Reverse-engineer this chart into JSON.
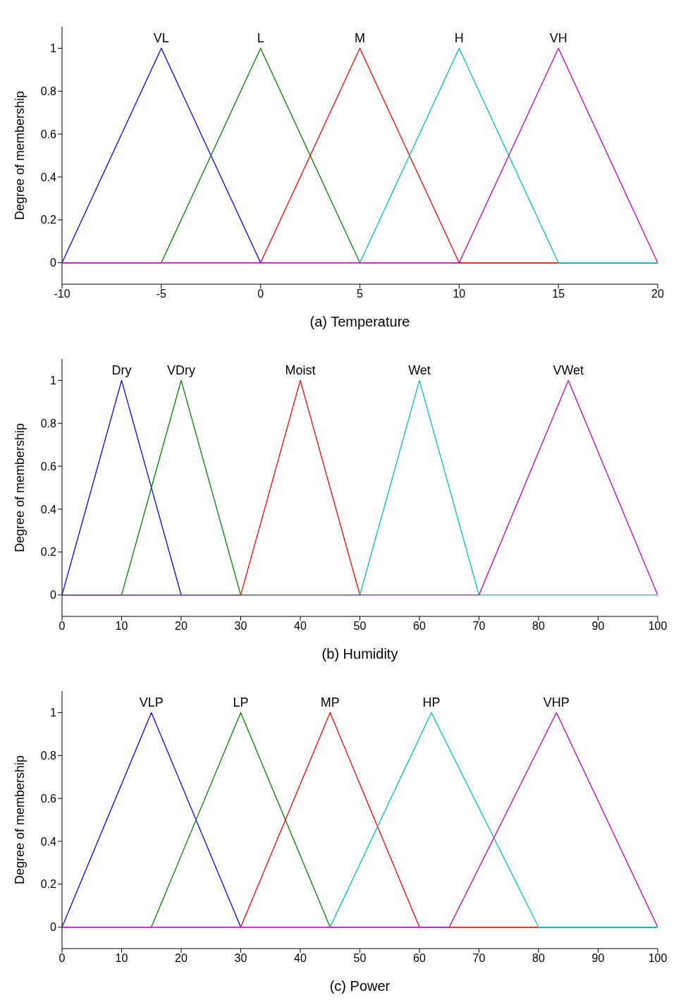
{
  "chart_data": [
    {
      "type": "line",
      "xlabel": "(a) Temperature",
      "ylabel": "Degree of membership",
      "xlim": [
        -10,
        20
      ],
      "xticks": [
        -10,
        -5,
        0,
        5,
        10,
        15,
        20
      ],
      "ylim": [
        -0.1,
        1.1
      ],
      "yticks": [
        0,
        0.2,
        0.4,
        0.6,
        0.8,
        1
      ],
      "grid": false,
      "legend": false,
      "marker": "none",
      "line_style": "solid",
      "series": [
        {
          "name": "VL",
          "color": "#0000ff",
          "x": [
            -10,
            -5,
            0,
            20
          ],
          "values": [
            0,
            1,
            0,
            0
          ]
        },
        {
          "name": "L",
          "color": "#008000",
          "x": [
            -10,
            -5,
            0,
            5,
            20
          ],
          "values": [
            0,
            0,
            1,
            0,
            0
          ]
        },
        {
          "name": "M",
          "color": "#ff0000",
          "x": [
            -10,
            0,
            5,
            10,
            20
          ],
          "values": [
            0,
            0,
            1,
            0,
            0
          ]
        },
        {
          "name": "H",
          "color": "#00bfbf",
          "x": [
            -10,
            5,
            10,
            15,
            20
          ],
          "values": [
            0,
            0,
            1,
            0,
            0
          ]
        },
        {
          "name": "VH",
          "color": "#bf00bf",
          "x": [
            -10,
            10,
            15,
            20
          ],
          "values": [
            0,
            0,
            1,
            0
          ]
        }
      ]
    },
    {
      "type": "line",
      "xlabel": "(b) Humidity",
      "ylabel": "Degree of membership",
      "xlim": [
        0,
        100
      ],
      "xticks": [
        0,
        10,
        20,
        30,
        40,
        50,
        60,
        70,
        80,
        90,
        100
      ],
      "ylim": [
        -0.1,
        1.1
      ],
      "yticks": [
        0,
        0.2,
        0.4,
        0.6,
        0.8,
        1
      ],
      "grid": false,
      "legend": false,
      "marker": "none",
      "line_style": "solid",
      "series": [
        {
          "name": "Dry",
          "color": "#0000ff",
          "x": [
            0,
            10,
            20
          ],
          "values": [
            0,
            1,
            0
          ]
        },
        {
          "name": "VDry",
          "color": "#008000",
          "x": [
            0,
            10,
            20,
            30
          ],
          "values": [
            0,
            0,
            1,
            0
          ]
        },
        {
          "name": "Moist",
          "color": "#ff0000",
          "x": [
            0,
            30,
            40,
            50
          ],
          "values": [
            0,
            0,
            1,
            0
          ]
        },
        {
          "name": "Wet",
          "color": "#00bfbf",
          "x": [
            0,
            50,
            60,
            70,
            100
          ],
          "values": [
            0,
            0,
            1,
            0,
            0
          ]
        },
        {
          "name": "VWet",
          "color": "#bf00bf",
          "x": [
            0,
            70,
            85,
            100
          ],
          "values": [
            0,
            0,
            1,
            0
          ]
        }
      ]
    },
    {
      "type": "line",
      "xlabel": "(c) Power",
      "ylabel": "Degree of membership",
      "xlim": [
        0,
        100
      ],
      "xticks": [
        0,
        10,
        20,
        30,
        40,
        50,
        60,
        70,
        80,
        90,
        100
      ],
      "ylim": [
        -0.1,
        1.1
      ],
      "yticks": [
        0,
        0.2,
        0.4,
        0.6,
        0.8,
        1
      ],
      "grid": false,
      "legend": false,
      "marker": "none",
      "line_style": "solid",
      "series": [
        {
          "name": "VLP",
          "color": "#0000ff",
          "x": [
            0,
            15,
            30,
            100
          ],
          "values": [
            0,
            1,
            0,
            0
          ]
        },
        {
          "name": "LP",
          "color": "#008000",
          "x": [
            0,
            15,
            30,
            45,
            100
          ],
          "values": [
            0,
            0,
            1,
            0,
            0
          ]
        },
        {
          "name": "MP",
          "color": "#ff0000",
          "x": [
            0,
            30,
            45,
            60,
            100
          ],
          "values": [
            0,
            0,
            1,
            0,
            0
          ]
        },
        {
          "name": "HP",
          "color": "#00bfbf",
          "x": [
            0,
            45,
            62,
            80,
            100
          ],
          "values": [
            0,
            0,
            1,
            0,
            0
          ]
        },
        {
          "name": "VHP",
          "color": "#bf00bf",
          "x": [
            0,
            65,
            83,
            100
          ],
          "values": [
            0,
            0,
            1,
            0
          ]
        }
      ]
    }
  ]
}
